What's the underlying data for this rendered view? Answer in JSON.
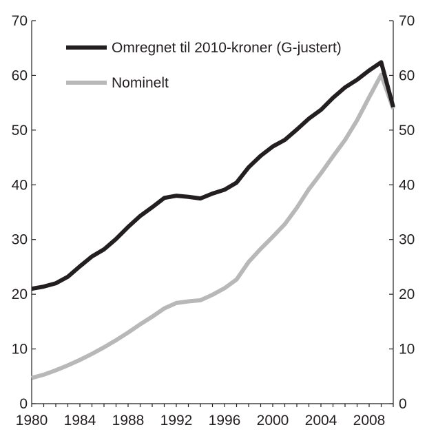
{
  "chart_data": {
    "type": "line",
    "x": [
      1980,
      1981,
      1982,
      1983,
      1984,
      1985,
      1986,
      1987,
      1988,
      1989,
      1990,
      1991,
      1992,
      1993,
      1994,
      1995,
      1996,
      1997,
      1998,
      1999,
      2000,
      2001,
      2002,
      2003,
      2004,
      2005,
      2006,
      2007,
      2008,
      2009,
      2010
    ],
    "series": [
      {
        "name": "Omregnet til 2010-kroner (G-justert)",
        "color": "#231f20",
        "values": [
          21.0,
          21.4,
          22.0,
          23.2,
          25.1,
          26.9,
          28.2,
          30.1,
          32.3,
          34.3,
          35.9,
          37.6,
          38.0,
          37.8,
          37.5,
          38.4,
          39.1,
          40.4,
          43.2,
          45.3,
          47.0,
          48.2,
          50.1,
          52.1,
          53.7,
          55.9,
          57.8,
          59.2,
          60.9,
          62.4,
          54.2
        ]
      },
      {
        "name": "Nominelt",
        "color": "#b8b8b8",
        "values": [
          4.7,
          5.3,
          6.1,
          7.0,
          8.0,
          9.1,
          10.3,
          11.6,
          13.0,
          14.5,
          15.9,
          17.4,
          18.4,
          18.7,
          18.9,
          19.9,
          21.1,
          22.7,
          25.9,
          28.3,
          30.5,
          32.8,
          35.8,
          39.2,
          42.1,
          45.2,
          48.2,
          51.8,
          56.0,
          60.1,
          53.9
        ]
      }
    ],
    "xlim": [
      1980,
      2010
    ],
    "ylim": [
      0,
      70
    ],
    "x_ticks": [
      1980,
      1984,
      1988,
      1992,
      1996,
      2000,
      2004,
      2008
    ],
    "x_tick_labels": [
      "1980",
      "1984",
      "1988",
      "1992",
      "1996",
      "2000",
      "2004",
      "2008"
    ],
    "y_ticks": [
      0,
      10,
      20,
      30,
      40,
      50,
      60,
      70
    ],
    "y_tick_labels": [
      "0",
      "10",
      "20",
      "30",
      "40",
      "50",
      "60",
      "70"
    ],
    "y_axis_right": true,
    "grid": false,
    "legend_position": "top-left-inside",
    "title": "",
    "xlabel": "",
    "ylabel": ""
  }
}
